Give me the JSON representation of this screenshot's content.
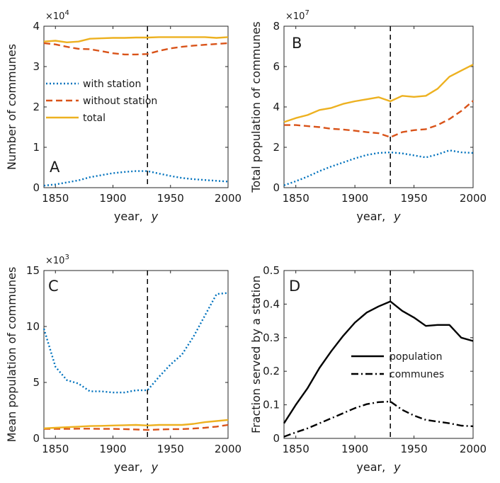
{
  "colors": {
    "with_station": "#0072BD",
    "without_station": "#D95319",
    "total": "#EDB120",
    "black": "#000000"
  },
  "chart_data": [
    {
      "panel": "A",
      "type": "line",
      "xlabel_text": "year,",
      "xlabel_var": "y",
      "ylabel": "Number of communes",
      "exponent_base": "×10",
      "exponent_power": "4",
      "xlim": [
        1840,
        2000
      ],
      "ylim": [
        0,
        4
      ],
      "xticks": [
        1850,
        1900,
        1950,
        2000
      ],
      "yticks": [
        0,
        1,
        2,
        3,
        4
      ],
      "vline": 1930,
      "legend_position": "middle-left",
      "series": [
        {
          "name": "with station",
          "style": "dotted",
          "color": "#0072BD",
          "x": [
            1840,
            1850,
            1860,
            1870,
            1880,
            1890,
            1900,
            1910,
            1920,
            1930,
            1940,
            1950,
            1960,
            1970,
            1980,
            1990,
            2000
          ],
          "y": [
            0.05,
            0.08,
            0.13,
            0.18,
            0.26,
            0.31,
            0.36,
            0.39,
            0.41,
            0.41,
            0.35,
            0.29,
            0.24,
            0.21,
            0.19,
            0.17,
            0.15
          ]
        },
        {
          "name": "without station",
          "style": "dashed",
          "color": "#D95319",
          "x": [
            1840,
            1850,
            1860,
            1870,
            1880,
            1890,
            1900,
            1910,
            1920,
            1930,
            1940,
            1950,
            1960,
            1970,
            1980,
            1990,
            2000
          ],
          "y": [
            3.58,
            3.55,
            3.49,
            3.44,
            3.43,
            3.38,
            3.33,
            3.3,
            3.3,
            3.31,
            3.39,
            3.45,
            3.49,
            3.52,
            3.54,
            3.56,
            3.58
          ]
        },
        {
          "name": "total",
          "style": "solid",
          "color": "#EDB120",
          "x": [
            1840,
            1850,
            1860,
            1870,
            1880,
            1890,
            1900,
            1910,
            1920,
            1930,
            1940,
            1950,
            1960,
            1970,
            1980,
            1990,
            2000
          ],
          "y": [
            3.62,
            3.64,
            3.6,
            3.62,
            3.69,
            3.7,
            3.71,
            3.71,
            3.72,
            3.72,
            3.73,
            3.73,
            3.73,
            3.73,
            3.73,
            3.71,
            3.73
          ]
        }
      ]
    },
    {
      "panel": "B",
      "type": "line",
      "xlabel_text": "year,",
      "xlabel_var": "y",
      "ylabel": "Total population of communes",
      "exponent_base": "×10",
      "exponent_power": "7",
      "xlim": [
        1840,
        2000
      ],
      "ylim": [
        0,
        8
      ],
      "xticks": [
        1850,
        1900,
        1950,
        2000
      ],
      "yticks": [
        0,
        2,
        4,
        6,
        8
      ],
      "vline": 1930,
      "series": [
        {
          "name": "with station",
          "style": "dotted",
          "color": "#0072BD",
          "x": [
            1840,
            1850,
            1860,
            1870,
            1880,
            1890,
            1900,
            1910,
            1920,
            1930,
            1940,
            1950,
            1960,
            1970,
            1980,
            1990,
            2000
          ],
          "y": [
            0.12,
            0.32,
            0.55,
            0.82,
            1.05,
            1.25,
            1.45,
            1.62,
            1.72,
            1.75,
            1.7,
            1.6,
            1.5,
            1.65,
            1.85,
            1.75,
            1.72
          ]
        },
        {
          "name": "without station",
          "style": "dashed",
          "color": "#D95319",
          "x": [
            1840,
            1850,
            1860,
            1870,
            1880,
            1890,
            1900,
            1910,
            1920,
            1930,
            1940,
            1950,
            1960,
            1970,
            1980,
            1990,
            2000
          ],
          "y": [
            3.1,
            3.1,
            3.05,
            3.0,
            2.92,
            2.88,
            2.82,
            2.75,
            2.7,
            2.5,
            2.75,
            2.85,
            2.9,
            3.1,
            3.4,
            3.8,
            4.3
          ]
        },
        {
          "name": "total",
          "style": "solid",
          "color": "#EDB120",
          "x": [
            1840,
            1850,
            1860,
            1870,
            1880,
            1890,
            1900,
            1910,
            1920,
            1930,
            1940,
            1950,
            1960,
            1970,
            1980,
            1990,
            2000
          ],
          "y": [
            3.25,
            3.45,
            3.6,
            3.85,
            3.95,
            4.15,
            4.28,
            4.38,
            4.48,
            4.28,
            4.55,
            4.5,
            4.55,
            4.9,
            5.5,
            5.8,
            6.1
          ]
        }
      ]
    },
    {
      "panel": "C",
      "type": "line",
      "xlabel_text": "year,",
      "xlabel_var": "y",
      "ylabel": "Mean population of communes",
      "exponent_base": "×10",
      "exponent_power": "3",
      "xlim": [
        1840,
        2000
      ],
      "ylim": [
        0,
        15
      ],
      "xticks": [
        1850,
        1900,
        1950,
        2000
      ],
      "yticks": [
        0,
        5,
        10,
        15
      ],
      "vline": 1930,
      "series": [
        {
          "name": "with station",
          "style": "dotted",
          "color": "#0072BD",
          "x": [
            1840,
            1850,
            1860,
            1870,
            1880,
            1890,
            1900,
            1910,
            1920,
            1930,
            1940,
            1950,
            1960,
            1970,
            1980,
            1990,
            2000
          ],
          "y": [
            9.8,
            6.4,
            5.2,
            4.9,
            4.2,
            4.2,
            4.1,
            4.1,
            4.3,
            4.3,
            5.5,
            6.6,
            7.5,
            9.1,
            11.0,
            12.9,
            13.0
          ]
        },
        {
          "name": "without station",
          "style": "dashed",
          "color": "#D95319",
          "x": [
            1840,
            1850,
            1860,
            1870,
            1880,
            1890,
            1900,
            1910,
            1920,
            1930,
            1940,
            1950,
            1960,
            1970,
            1980,
            1990,
            2000
          ],
          "y": [
            0.85,
            0.85,
            0.85,
            0.87,
            0.87,
            0.85,
            0.85,
            0.83,
            0.8,
            0.75,
            0.8,
            0.82,
            0.83,
            0.88,
            0.95,
            1.05,
            1.2
          ]
        },
        {
          "name": "total",
          "style": "solid",
          "color": "#EDB120",
          "x": [
            1840,
            1850,
            1860,
            1870,
            1880,
            1890,
            1900,
            1910,
            1920,
            1930,
            1940,
            1950,
            1960,
            1970,
            1980,
            1990,
            2000
          ],
          "y": [
            0.9,
            0.95,
            1.0,
            1.05,
            1.1,
            1.12,
            1.15,
            1.18,
            1.2,
            1.15,
            1.2,
            1.2,
            1.2,
            1.3,
            1.45,
            1.55,
            1.65
          ]
        }
      ]
    },
    {
      "panel": "D",
      "type": "line",
      "xlabel_text": "year,",
      "xlabel_var": "y",
      "ylabel": "Fraction served by a station",
      "xlim": [
        1840,
        2000
      ],
      "ylim": [
        0,
        0.5
      ],
      "xticks": [
        1850,
        1900,
        1950,
        2000
      ],
      "yticks": [
        0,
        0.1,
        0.2,
        0.3,
        0.4,
        0.5
      ],
      "vline": 1930,
      "legend_position": "center-right",
      "series": [
        {
          "name": "population",
          "style": "solid",
          "color": "#000000",
          "x": [
            1840,
            1850,
            1860,
            1870,
            1880,
            1890,
            1900,
            1910,
            1920,
            1930,
            1940,
            1950,
            1960,
            1970,
            1980,
            1990,
            2000
          ],
          "y": [
            0.045,
            0.1,
            0.15,
            0.21,
            0.26,
            0.305,
            0.345,
            0.375,
            0.393,
            0.408,
            0.38,
            0.36,
            0.335,
            0.338,
            0.338,
            0.3,
            0.29
          ]
        },
        {
          "name": "communes",
          "style": "dashdot",
          "color": "#000000",
          "x": [
            1840,
            1850,
            1860,
            1870,
            1880,
            1890,
            1900,
            1910,
            1920,
            1930,
            1940,
            1950,
            1960,
            1970,
            1980,
            1990,
            2000
          ],
          "y": [
            0.005,
            0.018,
            0.03,
            0.045,
            0.06,
            0.075,
            0.09,
            0.102,
            0.108,
            0.11,
            0.085,
            0.068,
            0.055,
            0.05,
            0.045,
            0.038,
            0.036
          ]
        }
      ]
    }
  ]
}
